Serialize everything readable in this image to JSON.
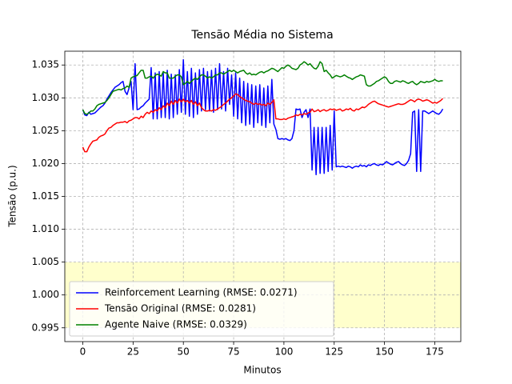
{
  "chart_data": {
    "type": "line",
    "title": "Tensão Média no Sistema",
    "x_label": "Minutos",
    "y_label": "Tensão (p.u.)",
    "xlim": [
      -8.95,
      187.95
    ],
    "ylim": [
      0.9929,
      1.0371
    ],
    "xticks": [
      0,
      25,
      50,
      75,
      100,
      125,
      150,
      175
    ],
    "yticks": [
      0.995,
      {
        "value": 1.0,
        "label": "1.000"
      },
      1.005,
      {
        "value": 1.01,
        "label": "1.010"
      },
      1.015,
      {
        "value": 1.02,
        "label": "1.020"
      },
      1.025,
      {
        "value": 1.03,
        "label": "1.030"
      },
      1.035
    ],
    "grid": true,
    "legend": "lower left",
    "shaded_band": {
      "ymin": 0.995,
      "ymax": 1.005,
      "color": "#ffffcc"
    },
    "x": [
      0,
      1,
      2,
      3,
      4,
      5,
      6,
      7,
      8,
      9,
      10,
      11,
      12,
      13,
      14,
      15,
      16,
      17,
      18,
      19,
      20,
      21,
      22,
      23,
      24,
      25,
      26,
      27,
      28,
      29,
      30,
      31,
      32,
      33,
      34,
      35,
      36,
      37,
      38,
      39,
      40,
      41,
      42,
      43,
      44,
      45,
      46,
      47,
      48,
      49,
      50,
      51,
      52,
      53,
      54,
      55,
      56,
      57,
      58,
      59,
      60,
      61,
      62,
      63,
      64,
      65,
      66,
      67,
      68,
      69,
      70,
      71,
      72,
      73,
      74,
      75,
      76,
      77,
      78,
      79,
      80,
      81,
      82,
      83,
      84,
      85,
      86,
      87,
      88,
      89,
      90,
      91,
      92,
      93,
      94,
      95,
      96,
      97,
      98,
      99,
      100,
      101,
      102,
      103,
      104,
      105,
      106,
      107,
      108,
      109,
      110,
      111,
      112,
      113,
      114,
      115,
      116,
      117,
      118,
      119,
      120,
      121,
      122,
      123,
      124,
      125,
      126,
      127,
      128,
      129,
      130,
      131,
      132,
      133,
      134,
      135,
      136,
      137,
      138,
      139,
      140,
      141,
      142,
      143,
      144,
      145,
      146,
      147,
      148,
      149,
      150,
      151,
      152,
      153,
      154,
      155,
      156,
      157,
      158,
      159,
      160,
      161,
      162,
      163,
      164,
      165,
      166,
      167,
      168,
      169,
      170,
      171,
      172,
      173,
      174,
      175,
      176,
      177,
      178,
      179
    ],
    "series": [
      {
        "name": "Reinforcement Learning (RMSE: 0.0271)",
        "color": "#0000ff",
        "values": [
          1.0282,
          1.0274,
          1.0273,
          1.0278,
          1.0275,
          1.0276,
          1.0277,
          1.028,
          1.0283,
          1.0286,
          1.0288,
          1.0292,
          1.0298,
          1.0303,
          1.0308,
          1.0312,
          1.0316,
          1.0318,
          1.032,
          1.0323,
          1.0325,
          1.031,
          1.0305,
          1.0315,
          1.0325,
          1.0282,
          1.0352,
          1.0282,
          1.0283,
          1.0286,
          1.0288,
          1.0292,
          1.0295,
          1.0298,
          1.0346,
          1.0268,
          1.0338,
          1.0268,
          1.034,
          1.027,
          1.0338,
          1.027,
          1.0342,
          1.0268,
          1.0336,
          1.027,
          1.0335,
          1.0275,
          1.0343,
          1.0278,
          1.0358,
          1.0275,
          1.034,
          1.0272,
          1.0345,
          1.027,
          1.0338,
          1.0275,
          1.0343,
          1.028,
          1.0345,
          1.0282,
          1.034,
          1.028,
          1.0342,
          1.0278,
          1.0345,
          1.0282,
          1.0352,
          1.0283,
          1.034,
          1.028,
          1.0345,
          1.029,
          1.0335,
          1.0272,
          1.0338,
          1.0268,
          1.033,
          1.0262,
          1.0325,
          1.0258,
          1.0322,
          1.026,
          1.032,
          1.0255,
          1.0318,
          1.0262,
          1.032,
          1.0258,
          1.0315,
          1.0255,
          1.0318,
          1.0262,
          1.0328,
          1.026,
          1.0252,
          1.0238,
          1.0237,
          1.0238,
          1.0237,
          1.0238,
          1.0236,
          1.0235,
          1.0238,
          1.025,
          1.0283,
          1.0282,
          1.0283,
          1.027,
          1.0278,
          1.0282,
          1.027,
          1.0283,
          1.019,
          1.0255,
          1.0183,
          1.0255,
          1.0185,
          1.0255,
          1.0185,
          1.0255,
          1.0188,
          1.0258,
          1.019,
          1.028,
          1.0195,
          1.0196,
          1.0195,
          1.0196,
          1.0195,
          1.0194,
          1.0196,
          1.0195,
          1.0193,
          1.0195,
          1.0196,
          1.0195,
          1.0198,
          1.0196,
          1.0197,
          1.0195,
          1.0198,
          1.0197,
          1.0199,
          1.02,
          1.0198,
          1.0197,
          1.0199,
          1.0198,
          1.02,
          1.0203,
          1.0201,
          1.0199,
          1.0198,
          1.02,
          1.0202,
          1.0203,
          1.02,
          1.0198,
          1.0197,
          1.02,
          1.0205,
          1.0215,
          1.0278,
          1.028,
          1.0188,
          1.0282,
          1.0188,
          1.028,
          1.028,
          1.0278,
          1.0276,
          1.0278,
          1.028,
          1.0278,
          1.0276,
          1.0275,
          1.0278,
          1.0283
        ]
      },
      {
        "name": "Tensão Original (RMSE: 0.0281)",
        "color": "#ff0000",
        "values": [
          1.0225,
          1.0218,
          1.0218,
          1.0225,
          1.023,
          1.0234,
          1.0235,
          1.0236,
          1.024,
          1.0242,
          1.0243,
          1.0245,
          1.025,
          1.0254,
          1.0255,
          1.0258,
          1.026,
          1.0262,
          1.0262,
          1.0263,
          1.0263,
          1.0264,
          1.0262,
          1.0265,
          1.0266,
          1.0268,
          1.027,
          1.027,
          1.0268,
          1.0272,
          1.027,
          1.0275,
          1.0278,
          1.0276,
          1.028,
          1.0278,
          1.0282,
          1.028,
          1.0285,
          1.0282,
          1.0288,
          1.0285,
          1.0292,
          1.0288,
          1.0295,
          1.029,
          1.0296,
          1.0292,
          1.0298,
          1.0294,
          1.0298,
          1.0294,
          1.0296,
          1.0292,
          1.0296,
          1.029,
          1.0294,
          1.0288,
          1.0292,
          1.0285,
          1.0282,
          1.028,
          1.028,
          1.0281,
          1.028,
          1.0282,
          1.0281,
          1.0283,
          1.0285,
          1.0287,
          1.029,
          1.0292,
          1.0295,
          1.0298,
          1.03,
          1.0303,
          1.0306,
          1.0305,
          1.0302,
          1.03,
          1.0298,
          1.0296,
          1.0295,
          1.0294,
          1.0292,
          1.029,
          1.0292,
          1.029,
          1.0291,
          1.0289,
          1.029,
          1.0288,
          1.0292,
          1.029,
          1.0293,
          1.0297,
          1.0268,
          1.0268,
          1.0267,
          1.0267,
          1.0268,
          1.0267,
          1.0269,
          1.027,
          1.0271,
          1.0272,
          1.0274,
          1.0273,
          1.0275,
          1.0274,
          1.0276,
          1.0275,
          1.0277,
          1.0278,
          1.0283,
          1.0279,
          1.028,
          1.0282,
          1.0279,
          1.0281,
          1.0282,
          1.028,
          1.0281,
          1.0283,
          1.0282,
          1.0283,
          1.0281,
          1.0282,
          1.0283,
          1.028,
          1.0281,
          1.0283,
          1.0282,
          1.0284,
          1.0281,
          1.028,
          1.0283,
          1.0282,
          1.0284,
          1.0286,
          1.0285,
          1.0287,
          1.029,
          1.0292,
          1.0294,
          1.0295,
          1.0293,
          1.0291,
          1.029,
          1.0289,
          1.0288,
          1.0287,
          1.0286,
          1.0287,
          1.0288,
          1.0289,
          1.029,
          1.0291,
          1.029,
          1.029,
          1.0291,
          1.0293,
          1.0295,
          1.0297,
          1.0296,
          1.0294,
          1.0297,
          1.0298,
          1.0297,
          1.0295,
          1.0296,
          1.0297,
          1.0296,
          1.0294,
          1.0292,
          1.0293,
          1.0292,
          1.0294,
          1.0296,
          1.0299
        ]
      },
      {
        "name": "Agente Naive (RMSE: 0.0329)",
        "color": "#008000",
        "values": [
          1.0282,
          1.0276,
          1.0275,
          1.0277,
          1.028,
          1.028,
          1.0283,
          1.0288,
          1.029,
          1.0291,
          1.0292,
          1.0293,
          1.0296,
          1.03,
          1.0305,
          1.031,
          1.0311,
          1.0312,
          1.0313,
          1.0312,
          1.0314,
          1.0315,
          1.0318,
          1.0316,
          1.033,
          1.0332,
          1.0333,
          1.0334,
          1.0338,
          1.0342,
          1.0342,
          1.033,
          1.033,
          1.0332,
          1.0333,
          1.033,
          1.0334,
          1.0336,
          1.0335,
          1.0333,
          1.034,
          1.0338,
          1.0338,
          1.033,
          1.033,
          1.033,
          1.0333,
          1.0335,
          1.0335,
          1.0332,
          1.032,
          1.0322,
          1.0325,
          1.0322,
          1.0325,
          1.0328,
          1.033,
          1.0328,
          1.0332,
          1.0335,
          1.0335,
          1.0333,
          1.033,
          1.0332,
          1.033,
          1.0332,
          1.0335,
          1.0335,
          1.0338,
          1.0338,
          1.0336,
          1.0338,
          1.034,
          1.0342,
          1.034,
          1.0342,
          1.034,
          1.0338,
          1.034,
          1.0341,
          1.0342,
          1.0338,
          1.0336,
          1.0338,
          1.0335,
          1.0336,
          1.0335,
          1.0337,
          1.0339,
          1.034,
          1.0338,
          1.034,
          1.0341,
          1.0343,
          1.0345,
          1.0344,
          1.0342,
          1.034,
          1.0343,
          1.0346,
          1.0345,
          1.0348,
          1.035,
          1.0348,
          1.0345,
          1.0344,
          1.0343,
          1.0345,
          1.035,
          1.0352,
          1.0355,
          1.0353,
          1.035,
          1.0352,
          1.0348,
          1.0345,
          1.0344,
          1.0348,
          1.0355,
          1.0352,
          1.034,
          1.0342,
          1.0338,
          1.0335,
          1.033,
          1.0332,
          1.0334,
          1.0333,
          1.0332,
          1.0333,
          1.0335,
          1.0333,
          1.0331,
          1.033,
          1.0328,
          1.033,
          1.0332,
          1.0333,
          1.0335,
          1.0334,
          1.0333,
          1.032,
          1.0318,
          1.0318,
          1.032,
          1.0322,
          1.0325,
          1.0326,
          1.0328,
          1.033,
          1.0332,
          1.033,
          1.0325,
          1.0322,
          1.0322,
          1.0325,
          1.0326,
          1.0325,
          1.0324,
          1.0326,
          1.0325,
          1.0323,
          1.0322,
          1.0324,
          1.0325,
          1.0322,
          1.032,
          1.0322,
          1.0325,
          1.0324,
          1.0323,
          1.0325,
          1.0324,
          1.0325,
          1.0326,
          1.0328,
          1.0326,
          1.0325,
          1.0326,
          1.0326
        ]
      }
    ]
  }
}
